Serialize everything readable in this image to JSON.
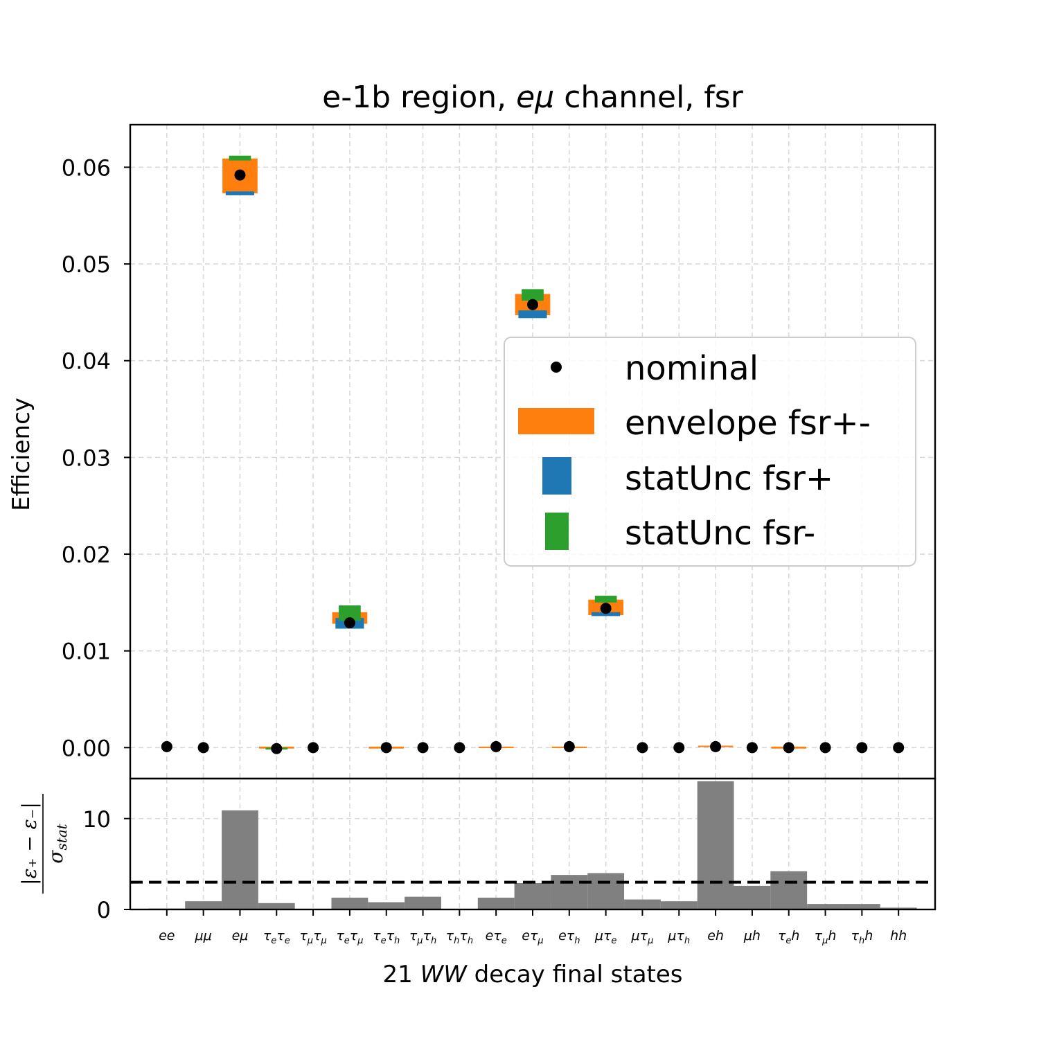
{
  "chart_data": [
    {
      "type": "scatter",
      "title_parts": [
        {
          "text": "e-1b region, ",
          "italic": false
        },
        {
          "text": "eμ",
          "italic": true
        },
        {
          "text": " channel, fsr",
          "italic": false
        }
      ],
      "ylabel": "Efficiency",
      "ylim": [
        -0.0032,
        0.0644
      ],
      "yticks": [
        "0.00",
        "0.01",
        "0.02",
        "0.03",
        "0.04",
        "0.05",
        "0.06"
      ],
      "grid": true,
      "legend_position": "center-right",
      "legend": [
        "nominal",
        "envelope fsr+-",
        "statUnc fsr+",
        "statUnc fsr-"
      ],
      "colors": {
        "nominal": "#000000",
        "envelope": "#ff7f0e",
        "stat_plus": "#1f77b4",
        "stat_minus": "#2ca02c"
      },
      "categories": [
        [
          {
            "t": "ee"
          }
        ],
        [
          {
            "t": "μμ"
          }
        ],
        [
          {
            "t": "eμ"
          }
        ],
        [
          {
            "t": "τ"
          },
          {
            "t": "e",
            "sub": true
          },
          {
            "t": "τ"
          },
          {
            "t": "e",
            "sub": true
          }
        ],
        [
          {
            "t": "τ"
          },
          {
            "t": "μ",
            "sub": true
          },
          {
            "t": "τ"
          },
          {
            "t": "μ",
            "sub": true
          }
        ],
        [
          {
            "t": "τ"
          },
          {
            "t": "e",
            "sub": true
          },
          {
            "t": "τ"
          },
          {
            "t": "μ",
            "sub": true
          }
        ],
        [
          {
            "t": "τ"
          },
          {
            "t": "e",
            "sub": true
          },
          {
            "t": "τ"
          },
          {
            "t": "h",
            "sub": true
          }
        ],
        [
          {
            "t": "τ"
          },
          {
            "t": "μ",
            "sub": true
          },
          {
            "t": "τ"
          },
          {
            "t": "h",
            "sub": true
          }
        ],
        [
          {
            "t": "τ"
          },
          {
            "t": "h",
            "sub": true
          },
          {
            "t": "τ"
          },
          {
            "t": "h",
            "sub": true
          }
        ],
        [
          {
            "t": "eτ"
          },
          {
            "t": "e",
            "sub": true
          }
        ],
        [
          {
            "t": "eτ"
          },
          {
            "t": "μ",
            "sub": true
          }
        ],
        [
          {
            "t": "eτ"
          },
          {
            "t": "h",
            "sub": true
          }
        ],
        [
          {
            "t": "μτ"
          },
          {
            "t": "e",
            "sub": true
          }
        ],
        [
          {
            "t": "μτ"
          },
          {
            "t": "μ",
            "sub": true
          }
        ],
        [
          {
            "t": "μτ"
          },
          {
            "t": "h",
            "sub": true
          }
        ],
        [
          {
            "t": "eh"
          }
        ],
        [
          {
            "t": "μh"
          }
        ],
        [
          {
            "t": "τ"
          },
          {
            "t": "e",
            "sub": true
          },
          {
            "t": "h"
          }
        ],
        [
          {
            "t": "τ"
          },
          {
            "t": "μ",
            "sub": true
          },
          {
            "t": "h"
          }
        ],
        [
          {
            "t": "τ"
          },
          {
            "t": "h",
            "sub": true
          },
          {
            "t": "h"
          }
        ],
        [
          {
            "t": "hh"
          }
        ]
      ],
      "series": [
        {
          "name": "nominal",
          "values": [
            0.0001,
            0.0,
            0.0592,
            -0.0001,
            0.0,
            0.0129,
            0.0,
            0.0,
            0.0,
            0.0001,
            0.0458,
            0.0001,
            0.0144,
            0.0,
            0.0,
            0.0001,
            0.0,
            0.0,
            0.0,
            0.0,
            0.0
          ]
        },
        {
          "name": "envelope fsr+-",
          "low": [
            0.0,
            0.0,
            0.0573,
            -0.0001,
            0.0,
            0.0128,
            -0.0001,
            0.0,
            0.0,
            0.0,
            0.0447,
            0.0,
            0.0137,
            0.0,
            0.0,
            0.0001,
            0.0,
            -0.0001,
            0.0,
            0.0,
            0.0
          ],
          "high": [
            0.0,
            0.0,
            0.0609,
            0.0001,
            0.0,
            0.014,
            0.0001,
            0.0,
            0.0,
            0.0001,
            0.0469,
            0.0001,
            0.0153,
            0.0,
            0.0,
            0.0002,
            0.0,
            0.0001,
            0.0,
            0.0,
            0.0
          ]
        },
        {
          "name": "statUnc fsr+",
          "low": [
            0.0,
            0.0,
            0.0571,
            0.0,
            0.0,
            0.0123,
            0.0,
            0.0,
            0.0,
            0.0,
            0.0444,
            0.0,
            0.0136,
            0.0,
            0.0,
            0.0,
            0.0,
            0.0,
            0.0,
            0.0,
            0.0
          ],
          "high": [
            0.0,
            0.0,
            0.0575,
            0.0,
            0.0,
            0.0134,
            0.0,
            0.0,
            0.0,
            0.0,
            0.0452,
            0.0,
            0.014,
            0.0,
            0.0,
            0.0,
            0.0,
            0.0,
            0.0,
            0.0,
            0.0
          ]
        },
        {
          "name": "statUnc fsr-",
          "low": [
            0.0,
            0.0,
            0.0607,
            -0.0002,
            0.0,
            0.0131,
            0.0,
            0.0,
            0.0,
            0.0,
            0.0462,
            0.0,
            0.015,
            0.0,
            0.0,
            0.0,
            0.0,
            0.0,
            0.0,
            0.0,
            0.0
          ],
          "high": [
            0.0,
            0.0,
            0.0612,
            0.0,
            0.0,
            0.0147,
            0.0,
            0.0,
            0.0,
            0.0,
            0.0474,
            0.0,
            0.0157,
            0.0,
            0.0,
            0.0,
            0.0,
            0.0,
            0.0,
            0.0,
            0.0
          ]
        }
      ]
    },
    {
      "type": "bar",
      "ylabel_parts": {
        "num": "|ε₊ − ε₋|",
        "den_main": "σ",
        "den_sub": "stat"
      },
      "ylim": [
        0,
        14.4
      ],
      "yticks": [
        "0",
        "10"
      ],
      "ytick_values": [
        0,
        10
      ],
      "reference_line": 3,
      "bar_color": "#808080",
      "values": [
        0.1,
        0.9,
        10.9,
        0.7,
        0.0,
        1.3,
        0.8,
        1.4,
        0.0,
        1.3,
        2.9,
        3.8,
        4.0,
        1.1,
        0.9,
        14.1,
        2.6,
        4.2,
        0.6,
        0.6,
        0.2
      ]
    }
  ],
  "xlabel_parts": [
    {
      "text": "21 ",
      "italic": false
    },
    {
      "text": "WW",
      "italic": true
    },
    {
      "text": " decay final states",
      "italic": false
    }
  ]
}
